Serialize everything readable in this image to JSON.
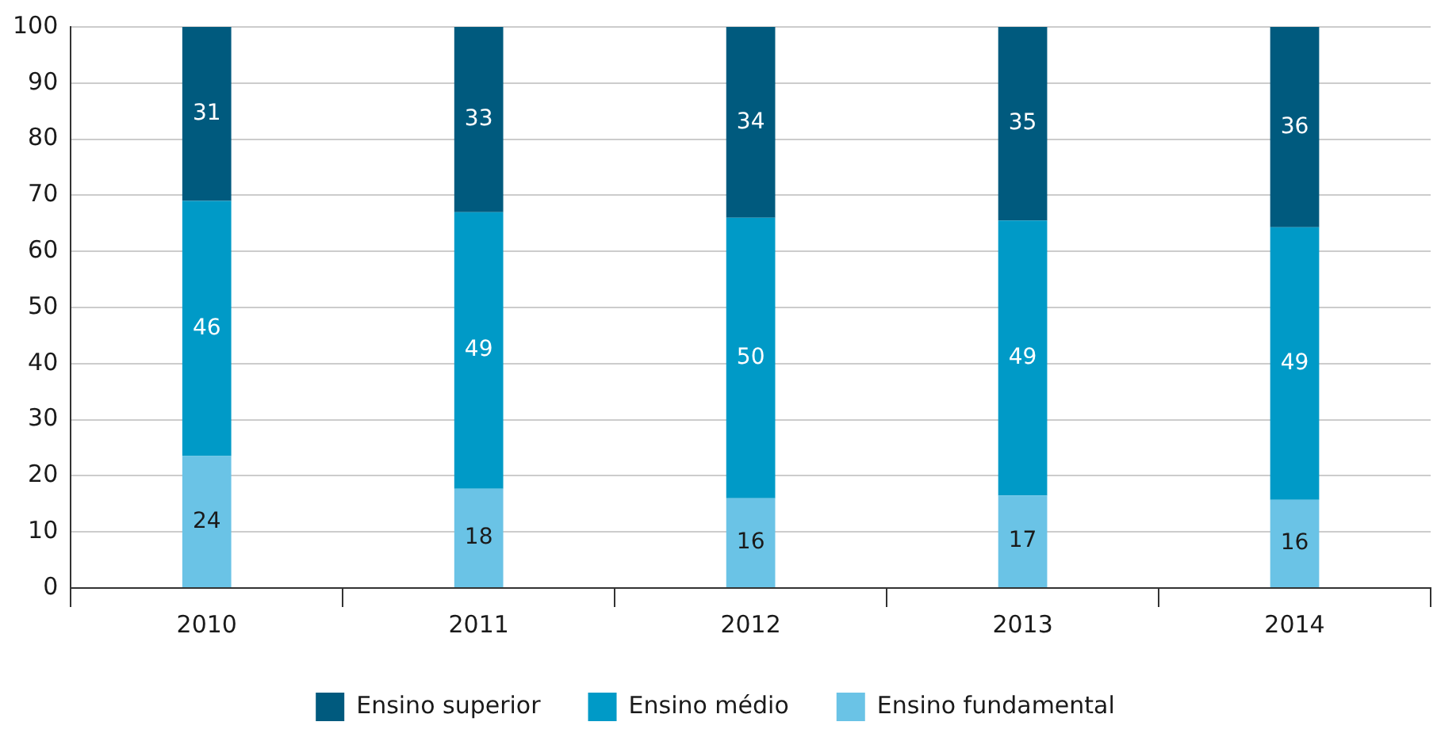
{
  "chart_data": {
    "type": "bar",
    "stacked": true,
    "categories": [
      "2010",
      "2011",
      "2012",
      "2013",
      "2014"
    ],
    "series": [
      {
        "name": "Ensino fundamental",
        "color": "#6ac3e6",
        "values": [
          23.5,
          17.7,
          16,
          16.5,
          15.7
        ],
        "value_labels": [
          "24",
          "18",
          "16",
          "17",
          "16"
        ]
      },
      {
        "name": "Ensino médio",
        "color": "#009ac7",
        "values": [
          45.5,
          49.3,
          50,
          49,
          48.6
        ],
        "value_labels": [
          "46",
          "49",
          "50",
          "49",
          "49"
        ]
      },
      {
        "name": "Ensino superior",
        "color": "#005a7e",
        "values": [
          31,
          33,
          34,
          34.5,
          35.7
        ],
        "value_labels": [
          "31",
          "33",
          "34",
          "35",
          "36"
        ]
      }
    ],
    "ylim": [
      0,
      100
    ],
    "yticks": [
      0,
      10,
      20,
      30,
      40,
      50,
      60,
      70,
      80,
      90,
      100
    ],
    "grid": "y",
    "legend": "bottom"
  }
}
